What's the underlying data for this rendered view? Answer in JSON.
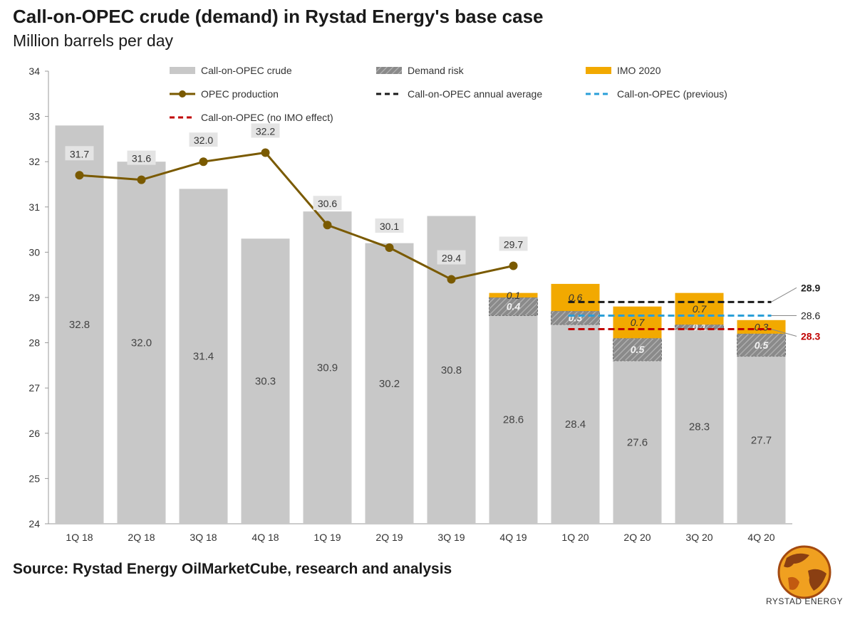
{
  "header": {
    "title": "Call-on-OPEC crude (demand) in Rystad Energy's base case",
    "subtitle": "Million barrels per day"
  },
  "footer": {
    "source": "Source: Rystad Energy OilMarketCube, research and analysis",
    "logo_text": "RYSTAD ENERGY"
  },
  "colors": {
    "bar": "#c8c8c8",
    "demand_risk": "#8a8a8a",
    "imo": "#f2a900",
    "opec_line": "#7a5a00",
    "annual_avg": "#1a1a1a",
    "previous": "#2a9fd8",
    "no_imo": "#c00000"
  },
  "chart_data": {
    "type": "bar",
    "categories": [
      "1Q 18",
      "2Q 18",
      "3Q 18",
      "4Q 18",
      "1Q 19",
      "2Q 19",
      "3Q 19",
      "4Q 19",
      "1Q 20",
      "2Q 20",
      "3Q 20",
      "4Q 20"
    ],
    "ylim": [
      24,
      34
    ],
    "yticks": [
      "24",
      "25",
      "26",
      "27",
      "28",
      "29",
      "30",
      "31",
      "32",
      "33",
      "34"
    ],
    "legend": [
      "Call-on-OPEC crude",
      "Demand risk",
      "IMO 2020",
      "OPEC production",
      "Call-on-OPEC annual average",
      "Call-on-OPEC (previous)",
      "Call-on-OPEC (no IMO effect)"
    ],
    "series": [
      {
        "name": "Call-on-OPEC crude",
        "values": [
          32.8,
          32.0,
          31.4,
          30.3,
          30.9,
          30.2,
          30.8,
          28.6,
          28.4,
          27.6,
          28.3,
          27.7
        ]
      },
      {
        "name": "Demand risk",
        "values": [
          null,
          null,
          null,
          null,
          null,
          null,
          null,
          0.4,
          0.3,
          0.5,
          0.1,
          0.5
        ]
      },
      {
        "name": "IMO 2020",
        "values": [
          null,
          null,
          null,
          null,
          null,
          null,
          null,
          0.1,
          0.6,
          0.7,
          0.7,
          0.3
        ]
      },
      {
        "name": "OPEC production",
        "values": [
          31.7,
          31.6,
          32.0,
          32.2,
          30.6,
          30.1,
          29.4,
          29.7,
          null,
          null,
          null,
          null
        ]
      }
    ],
    "bar_labels": [
      "32.8",
      "32.0",
      "31.4",
      "30.3",
      "30.9",
      "30.2",
      "30.8",
      "28.6",
      "28.4",
      "27.6",
      "28.3",
      "27.7"
    ],
    "line_labels": [
      "31.7",
      "31.6",
      "32.0",
      "32.2",
      "30.6",
      "30.1",
      "29.4",
      "29.7"
    ],
    "demand_risk_labels": [
      "",
      "",
      "",
      "",
      "",
      "",
      "",
      "0.4",
      "0.3",
      "0.5",
      "0.1",
      "0.5"
    ],
    "imo_labels": [
      "",
      "",
      "",
      "",
      "",
      "",
      "",
      "0.1",
      "0.6",
      "0.7",
      "0.7",
      "0.3"
    ],
    "reference_lines": [
      {
        "name": "Call-on-OPEC annual average",
        "value": 28.9,
        "label": "28.9"
      },
      {
        "name": "Call-on-OPEC (previous)",
        "value": 28.6,
        "label": "28.6"
      },
      {
        "name": "Call-on-OPEC (no IMO effect)",
        "value": 28.3,
        "label": "28.3"
      }
    ],
    "grid": false
  }
}
